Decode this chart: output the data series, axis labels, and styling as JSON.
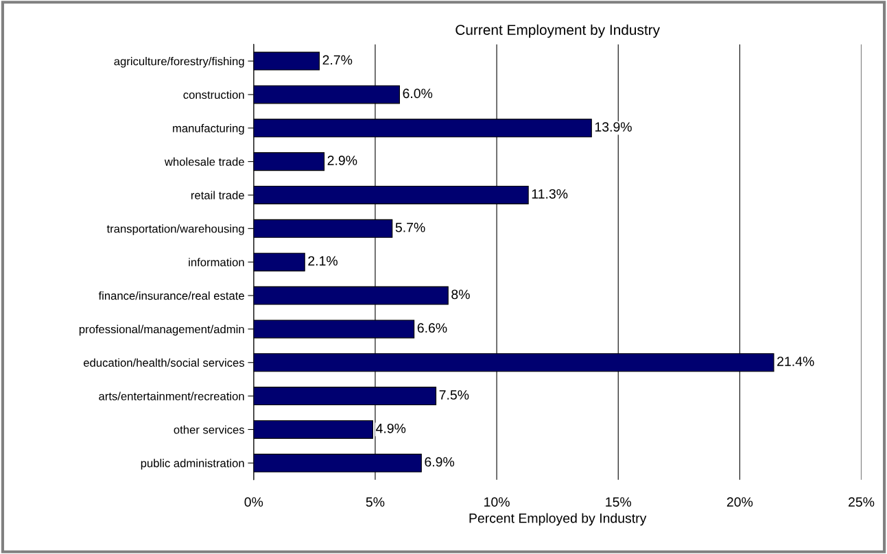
{
  "chart_data": {
    "type": "bar",
    "orientation": "horizontal",
    "title": "Current Employment by Industry",
    "xlabel": "Percent Employed by Industry",
    "categories": [
      "agriculture/forestry/fishing",
      "construction",
      "manufacturing",
      "wholesale trade",
      "retail trade",
      "transportation/warehousing",
      "information",
      "finance/insurance/real estate",
      "professional/management/admin",
      "education/health/social services",
      "arts/entertainment/recreation",
      "other services",
      "public administration"
    ],
    "values": [
      2.7,
      6.0,
      13.9,
      2.9,
      11.3,
      5.7,
      2.1,
      8,
      6.6,
      21.4,
      7.5,
      4.9,
      6.9
    ],
    "value_labels": [
      "2.7%",
      "6.0%",
      "13.9%",
      "2.9%",
      "11.3%",
      "5.7%",
      "2.1%",
      "8%",
      "6.6%",
      "21.4%",
      "7.5%",
      "4.9%",
      "6.9%"
    ],
    "color": "#000070",
    "xlim": [
      0,
      25
    ],
    "xticks": [
      {
        "value": 0,
        "label": "0%"
      },
      {
        "value": 5,
        "label": "5%"
      },
      {
        "value": 10,
        "label": "10%"
      },
      {
        "value": 15,
        "label": "15%"
      },
      {
        "value": 20,
        "label": "20%"
      },
      {
        "value": 25,
        "label": "25%"
      }
    ],
    "grid": "x",
    "legend": false
  }
}
